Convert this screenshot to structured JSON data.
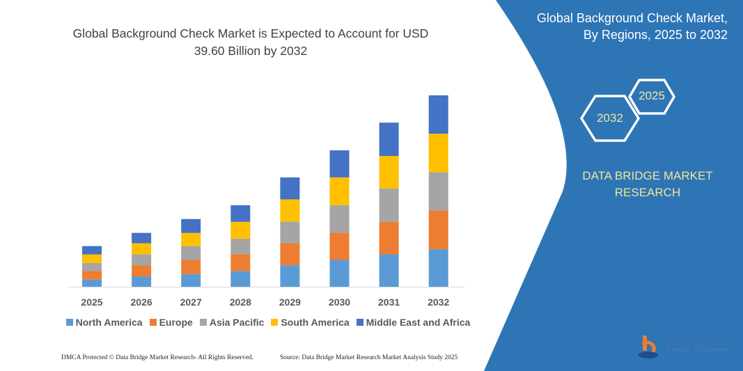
{
  "header": {
    "title_line1": "Global Background Check Market is Expected to Account for USD",
    "title_line2": "39.60 Billion by 2032"
  },
  "side_panel": {
    "title_line1": "Global Background Check Market,",
    "title_line2": "By Regions, 2025 to 2032",
    "hex_start": "2025",
    "hex_end": "2032",
    "brand_line1": "DATA BRIDGE MARKET",
    "brand_line2": "RESEARCH",
    "panel_color": "#2e75b6"
  },
  "footer": {
    "left": "DMCA Protected © Data Bridge Market Research-  All Rights Reserved.",
    "right": "Source: Data Bridge Market Research  Market Analysis Study 2025"
  },
  "logo": {
    "text": "DATA BRIDGE",
    "subtext": "MARKET RESEARCH"
  },
  "chart_data": {
    "type": "bar",
    "stacked": true,
    "title": "",
    "xlabel": "",
    "ylabel": "",
    "unit": "USD Billion",
    "ylim": [
      0,
      39.6
    ],
    "grid": false,
    "legend_position": "bottom",
    "categories": [
      "2025",
      "2026",
      "2027",
      "2028",
      "2029",
      "2030",
      "2031",
      "2032"
    ],
    "series": [
      {
        "name": "North America",
        "color": "#5b9bd5",
        "values": [
          1.48,
          2.15,
          2.63,
          3.26,
          4.45,
          5.55,
          6.7,
          7.79
        ]
      },
      {
        "name": "Europe",
        "color": "#ed7d31",
        "values": [
          1.77,
          2.3,
          2.91,
          3.49,
          4.55,
          5.6,
          6.74,
          7.99
        ]
      },
      {
        "name": "Asia Pacific",
        "color": "#a5a5a5",
        "values": [
          1.68,
          2.25,
          2.87,
          3.2,
          4.45,
          5.74,
          6.89,
          7.94
        ]
      },
      {
        "name": "South America",
        "color": "#ffc000",
        "values": [
          1.77,
          2.3,
          2.73,
          3.49,
          4.63,
          5.74,
          6.74,
          7.94
        ]
      },
      {
        "name": "Middle East and Africa",
        "color": "#4472c4",
        "values": [
          1.72,
          2.15,
          2.87,
          3.44,
          4.55,
          5.6,
          6.89,
          7.94
        ]
      }
    ]
  }
}
